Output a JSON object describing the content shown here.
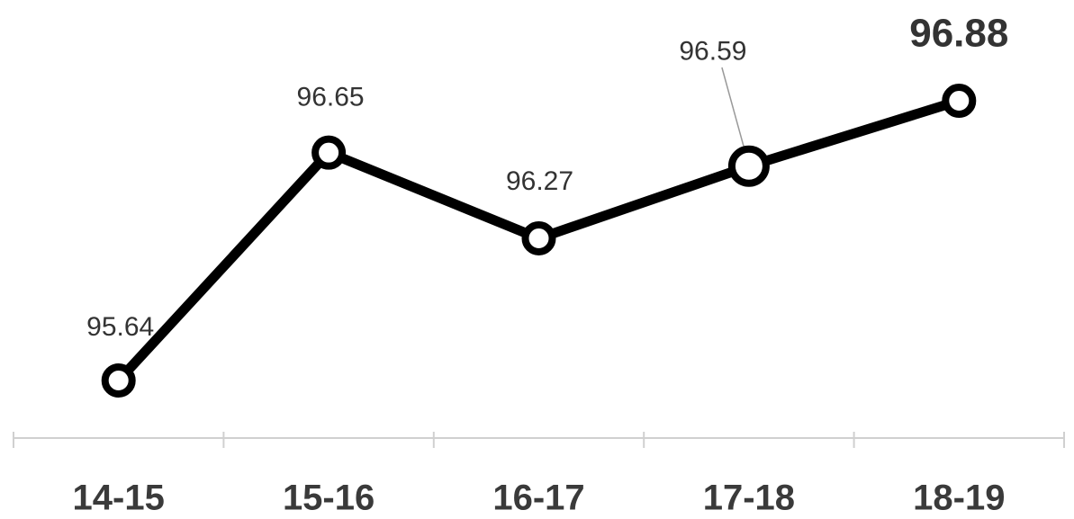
{
  "chart_data": {
    "type": "line",
    "categories": [
      "14-15",
      "15-16",
      "16-17",
      "17-18",
      "18-19"
    ],
    "values": [
      95.64,
      96.65,
      96.27,
      96.59,
      96.88
    ],
    "color": "#000000"
  }
}
